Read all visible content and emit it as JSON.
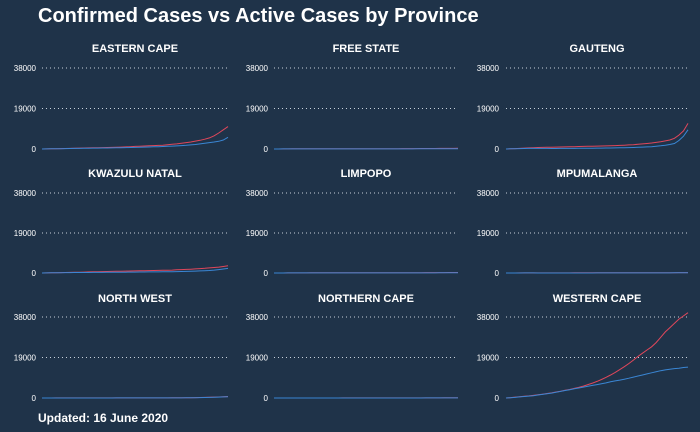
{
  "title": "Confirmed Cases vs Active Cases by Province",
  "footer": "Updated: 16 June 2020",
  "colors": {
    "background": "#1f3349",
    "confirmed": "#e0475b",
    "active": "#3a86d4",
    "grid": "#c8d2dc"
  },
  "chart_data": {
    "type": "line",
    "layout": "small-multiples 3x3",
    "yticks": [
      0,
      19000,
      38000
    ],
    "ylim": [
      0,
      38000
    ],
    "grid": "horizontal dotted",
    "panels": [
      {
        "name": "EASTERN CAPE",
        "series": [
          {
            "values": [
              0,
              50,
              100,
              150,
              200,
              250,
              300,
              350,
              400,
              450,
              500,
              550,
              600,
              650,
              700,
              750,
              800,
              900,
              1000,
              1100,
              1200,
              1300,
              1400,
              1500,
              1600,
              1700,
              1800,
              2000,
              2200,
              2400,
              2700,
              3000,
              3300,
              3700,
              4100,
              4600,
              5200,
              6200,
              7500,
              9000,
              10500
            ]
          },
          {
            "values": [
              0,
              40,
              80,
              120,
              160,
              200,
              250,
              280,
              300,
              330,
              360,
              400,
              420,
              450,
              480,
              520,
              560,
              600,
              650,
              700,
              760,
              820,
              900,
              960,
              1020,
              1100,
              1150,
              1250,
              1350,
              1450,
              1600,
              1750,
              1900,
              2100,
              2400,
              2700,
              3000,
              3300,
              3600,
              4200,
              5500
            ]
          }
        ]
      },
      {
        "name": "FREE STATE",
        "series": [
          {
            "values": [
              0,
              20,
              40,
              60,
              80,
              100,
              100,
              110,
              110,
              110,
              115,
              115,
              120,
              120,
              120,
              125,
              125,
              130,
              130,
              130,
              135,
              135,
              140,
              140,
              145,
              150,
              150,
              160,
              170,
              180,
              200,
              210,
              220,
              230,
              240,
              250,
              260,
              270,
              280,
              300,
              330
            ]
          },
          {
            "values": [
              0,
              15,
              30,
              40,
              50,
              50,
              50,
              45,
              40,
              40,
              40,
              40,
              35,
              35,
              35,
              35,
              35,
              40,
              40,
              40,
              40,
              40,
              40,
              45,
              45,
              50,
              50,
              55,
              60,
              65,
              70,
              75,
              80,
              85,
              90,
              95,
              100,
              110,
              120,
              140,
              160
            ]
          }
        ]
      },
      {
        "name": "GAUTENG",
        "series": [
          {
            "values": [
              0,
              100,
              200,
              300,
              400,
              500,
              600,
              700,
              750,
              800,
              850,
              900,
              950,
              1000,
              1050,
              1100,
              1150,
              1200,
              1250,
              1300,
              1350,
              1400,
              1450,
              1500,
              1600,
              1700,
              1800,
              1900,
              2000,
              2200,
              2400,
              2600,
              2800,
              3100,
              3400,
              3800,
              4200,
              5000,
              6500,
              8500,
              12000
            ]
          },
          {
            "values": [
              0,
              80,
              150,
              200,
              250,
              280,
              300,
              300,
              280,
              260,
              250,
              250,
              260,
              270,
              280,
              300,
              320,
              340,
              360,
              380,
              400,
              420,
              450,
              480,
              520,
              560,
              600,
              650,
              700,
              800,
              900,
              1000,
              1100,
              1300,
              1500,
              1800,
              2100,
              2600,
              4000,
              6000,
              9000
            ]
          }
        ]
      },
      {
        "name": "KWAZULU NATAL",
        "series": [
          {
            "values": [
              0,
              50,
              100,
              150,
              200,
              250,
              300,
              350,
              400,
              450,
              500,
              550,
              600,
              650,
              700,
              750,
              800,
              850,
              900,
              950,
              1000,
              1050,
              1100,
              1150,
              1200,
              1250,
              1300,
              1350,
              1400,
              1500,
              1600,
              1700,
              1800,
              1950,
              2100,
              2250,
              2400,
              2600,
              2800,
              3100,
              3400
            ]
          },
          {
            "values": [
              0,
              40,
              80,
              110,
              150,
              180,
              200,
              220,
              230,
              250,
              260,
              270,
              280,
              300,
              320,
              340,
              360,
              380,
              400,
              420,
              440,
              460,
              480,
              500,
              520,
              540,
              560,
              580,
              600,
              650,
              700,
              750,
              800,
              900,
              1000,
              1100,
              1200,
              1400,
              1600,
              1900,
              2200
            ]
          }
        ]
      },
      {
        "name": "LIMPOPO",
        "series": [
          {
            "values": [
              0,
              10,
              20,
              30,
              40,
              50,
              60,
              70,
              80,
              90,
              100,
              100,
              100,
              100,
              110,
              110,
              110,
              110,
              115,
              115,
              120,
              120,
              125,
              125,
              130,
              130,
              135,
              135,
              140,
              145,
              150,
              155,
              160,
              170,
              180,
              190,
              200,
              210,
              220,
              240,
              260
            ]
          },
          {
            "values": [
              0,
              10,
              20,
              25,
              30,
              30,
              30,
              30,
              30,
              30,
              30,
              30,
              30,
              30,
              30,
              30,
              30,
              30,
              30,
              30,
              30,
              35,
              35,
              35,
              40,
              40,
              40,
              45,
              45,
              50,
              50,
              55,
              60,
              60,
              65,
              70,
              75,
              80,
              90,
              100,
              120
            ]
          }
        ]
      },
      {
        "name": "MPUMALANGA",
        "series": [
          {
            "values": [
              0,
              10,
              20,
              30,
              40,
              50,
              60,
              60,
              60,
              60,
              65,
              65,
              70,
              70,
              70,
              75,
              75,
              80,
              80,
              80,
              85,
              85,
              90,
              90,
              95,
              95,
              100,
              100,
              105,
              110,
              115,
              120,
              125,
              130,
              135,
              140,
              150,
              160,
              170,
              190,
              210
            ]
          },
          {
            "values": [
              0,
              8,
              16,
              20,
              25,
              25,
              25,
              20,
              20,
              20,
              20,
              20,
              20,
              20,
              20,
              20,
              20,
              20,
              20,
              20,
              25,
              25,
              25,
              25,
              30,
              30,
              30,
              35,
              35,
              40,
              40,
              45,
              50,
              55,
              60,
              65,
              70,
              75,
              80,
              90,
              100
            ]
          }
        ]
      },
      {
        "name": "NORTH WEST",
        "series": [
          {
            "values": [
              0,
              10,
              20,
              30,
              30,
              30,
              30,
              30,
              30,
              30,
              30,
              30,
              35,
              35,
              35,
              35,
              40,
              40,
              40,
              45,
              45,
              50,
              50,
              55,
              60,
              60,
              65,
              70,
              80,
              90,
              100,
              120,
              150,
              180,
              220,
              270,
              330,
              400,
              480,
              580,
              700
            ]
          },
          {
            "values": [
              0,
              8,
              15,
              20,
              20,
              20,
              20,
              20,
              20,
              20,
              20,
              20,
              20,
              20,
              20,
              20,
              25,
              25,
              25,
              25,
              30,
              30,
              30,
              35,
              35,
              40,
              40,
              45,
              50,
              60,
              70,
              90,
              110,
              140,
              180,
              230,
              290,
              360,
              440,
              520,
              620
            ]
          }
        ]
      },
      {
        "name": "NORTHERN CAPE",
        "series": [
          {
            "values": [
              0,
              5,
              10,
              15,
              15,
              16,
              16,
              17,
              17,
              18,
              18,
              20,
              20,
              22,
              22,
              24,
              24,
              25,
              26,
              27,
              28,
              30,
              30,
              32,
              34,
              36,
              38,
              40,
              42,
              44,
              46,
              48,
              50,
              55,
              60,
              65,
              70,
              75,
              80,
              85,
              90
            ]
          },
          {
            "values": [
              0,
              4,
              8,
              10,
              10,
              10,
              10,
              10,
              10,
              10,
              10,
              10,
              10,
              10,
              10,
              10,
              10,
              10,
              10,
              10,
              10,
              10,
              10,
              12,
              12,
              14,
              14,
              16,
              16,
              18,
              18,
              20,
              22,
              24,
              26,
              28,
              30,
              32,
              35,
              38,
              40
            ]
          }
        ]
      },
      {
        "name": "WESTERN CAPE",
        "series": [
          {
            "values": [
              0,
              200,
              400,
              600,
              800,
              1000,
              1200,
              1500,
              1800,
              2100,
              2400,
              2800,
              3200,
              3600,
              4000,
              4500,
              5000,
              5600,
              6300,
              7000,
              7800,
              8700,
              9700,
              10800,
              12000,
              13300,
              14700,
              16200,
              17800,
              19500,
              21000,
              22500,
              24000,
              26000,
              28500,
              31000,
              33000,
              35000,
              37000,
              38500,
              40000
            ]
          },
          {
            "values": [
              0,
              150,
              300,
              500,
              700,
              900,
              1100,
              1400,
              1700,
              2000,
              2300,
              2700,
              3100,
              3500,
              3900,
              4300,
              4700,
              5100,
              5500,
              5900,
              6300,
              6700,
              7100,
              7600,
              8000,
              8400,
              8800,
              9300,
              9800,
              10300,
              10800,
              11300,
              11800,
              12300,
              12800,
              13200,
              13500,
              13800,
              14000,
              14300,
              14500
            ]
          }
        ]
      }
    ]
  }
}
